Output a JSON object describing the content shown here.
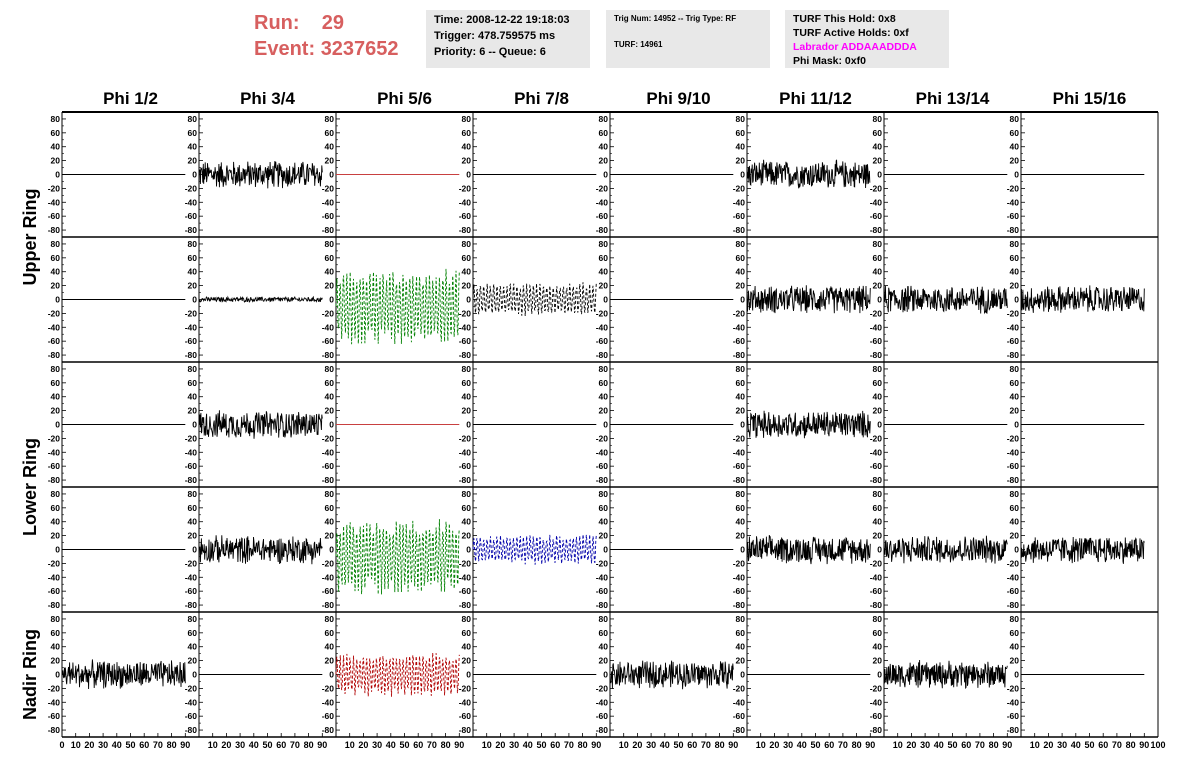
{
  "run_info": {
    "run_label": "Run:",
    "run_value": "29",
    "event_label": "Event:",
    "event_value": "3237652"
  },
  "timing_box": {
    "time": "Time: 2008-12-22 19:18:03",
    "trigger": "Trigger: 478.759575 ms",
    "priority": "Priority: 6 -- Queue: 6"
  },
  "trig_box": {
    "trig": "Trig Num: 14952 -- Trig Type: RF",
    "turf": "TURF: 14961"
  },
  "turf_box": {
    "this_hold": "TURF This Hold: 0x8",
    "active_holds": "TURF Active Holds: 0xf",
    "labrador": "Labrador ADDAAADDDA",
    "phi_mask": "Phi Mask: 0xf0",
    "labrador_color": "#ff00ff"
  },
  "chart_data": {
    "type": "line",
    "column_titles": [
      "Phi 1/2",
      "Phi 3/4",
      "Phi 5/6",
      "Phi 7/8",
      "Phi 9/10",
      "Phi 11/12",
      "Phi 13/14",
      "Phi 15/16"
    ],
    "ring_labels": [
      "Upper Ring",
      "Lower Ring",
      "Nadir Ring"
    ],
    "ylim": [
      -90,
      90
    ],
    "yticks": [
      -80,
      -60,
      -40,
      -20,
      0,
      20,
      40,
      60,
      80
    ],
    "xlim": [
      0,
      100
    ],
    "xticks": [
      0,
      10,
      20,
      30,
      40,
      50,
      60,
      70,
      80,
      90,
      100
    ],
    "samples_per_trace": 90,
    "panel_rows": [
      [
        "flat",
        "noise",
        "flat-red",
        "flat",
        "flat",
        "noise",
        "flat",
        "flat"
      ],
      [
        "flat",
        "small",
        "green",
        "black-dashed",
        "flat",
        "noise",
        "noise",
        "noise"
      ],
      [
        "flat",
        "noise",
        "flat-red",
        "flat",
        "flat",
        "noise",
        "flat",
        "flat"
      ],
      [
        "flat",
        "noise",
        "green",
        "blue-dashed",
        "flat",
        "noise",
        "noise",
        "noise"
      ],
      [
        "noise",
        "flat",
        "red-dashed",
        "flat",
        "noise",
        "flat",
        "noise",
        "flat"
      ]
    ],
    "series_amplitudes": {
      "noise": 22,
      "small": 4,
      "green": 55,
      "black-dashed": 25,
      "blue-dashed": 22,
      "red-dashed": 32
    },
    "series_offsets": {
      "noise": 0,
      "small": 0,
      "green": -10,
      "black-dashed": 0,
      "blue-dashed": 0,
      "red-dashed": 0
    },
    "colors": {
      "black": "#000000",
      "green": "#008000",
      "blue": "#0000aa",
      "red": "#b00000",
      "flat_red": "#c84040",
      "axis": "#000000"
    }
  }
}
